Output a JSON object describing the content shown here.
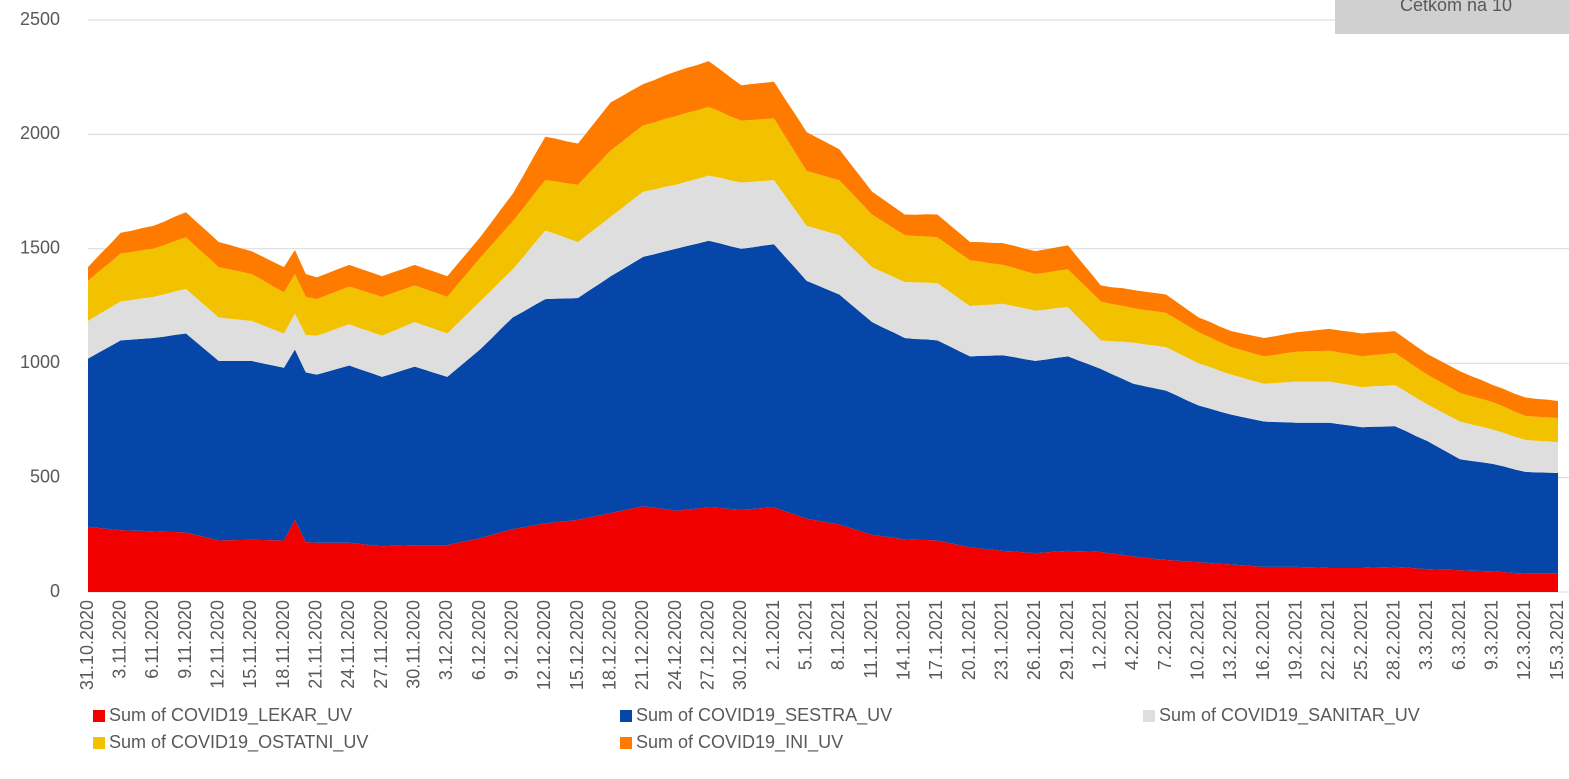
{
  "chart_data": {
    "type": "stacked_area",
    "note": "Četkom na 10",
    "categories": [
      "31.10.2020",
      null,
      null,
      "3.11.2020",
      null,
      null,
      "6.11.2020",
      null,
      null,
      "9.11.2020",
      null,
      null,
      "12.11.2020",
      null,
      null,
      "15.11.2020",
      null,
      null,
      "18.11.2020",
      null,
      null,
      "21.11.2020",
      null,
      null,
      "24.11.2020",
      null,
      null,
      "27.11.2020",
      null,
      null,
      "30.11.2020",
      null,
      null,
      "3.12.2020",
      null,
      null,
      "6.12.2020",
      null,
      null,
      "9.12.2020",
      null,
      null,
      "12.12.2020",
      null,
      null,
      "15.12.2020",
      null,
      null,
      "18.12.2020",
      null,
      null,
      "21.12.2020",
      null,
      null,
      "24.12.2020",
      null,
      null,
      "27.12.2020",
      null,
      null,
      "30.12.2020",
      null,
      null,
      "2.1.2021",
      null,
      null,
      "5.1.2021",
      null,
      null,
      "8.1.2021",
      null,
      null,
      "11.1.2021",
      null,
      null,
      "14.1.2021",
      null,
      null,
      "17.1.2021",
      null,
      null,
      "20.1.2021",
      null,
      null,
      "23.1.2021",
      null,
      null,
      "26.1.2021",
      null,
      null,
      "29.1.2021",
      null,
      null,
      "1.2.2021",
      null,
      null,
      "4.2.2021",
      null,
      null,
      "7.2.2021",
      null,
      null,
      "10.2.2021",
      null,
      null,
      "13.2.2021",
      null,
      null,
      "16.2.2021",
      null,
      null,
      "19.2.2021",
      null,
      null,
      "22.2.2021",
      null,
      null,
      "25.2.2021",
      null,
      null,
      "28.2.2021",
      null,
      null,
      "3.3.2021",
      null,
      null,
      "6.3.2021",
      null,
      null,
      "9.3.2021",
      null,
      null,
      "12.3.2021",
      null,
      null,
      "15.3.2021"
    ],
    "series": [
      {
        "name": "Sum of COVID19_LEKAR_UV",
        "color": "#f20000",
        "values": [
          285,
          280,
          275,
          270,
          268,
          267,
          265,
          263,
          262,
          260,
          248,
          237,
          225,
          226,
          227,
          228,
          227,
          226,
          225,
          315,
          218,
          215,
          215,
          215,
          215,
          210,
          205,
          200,
          202,
          203,
          205,
          205,
          205,
          205,
          215,
          225,
          235,
          248,
          262,
          275,
          283,
          292,
          300,
          305,
          310,
          315,
          325,
          335,
          345,
          355,
          365,
          375,
          368,
          362,
          355,
          360,
          365,
          370,
          367,
          363,
          360,
          363,
          367,
          370,
          353,
          337,
          320,
          312,
          303,
          295,
          280,
          265,
          250,
          243,
          237,
          230,
          228,
          227,
          225,
          215,
          205,
          195,
          190,
          185,
          180,
          177,
          173,
          170,
          173,
          177,
          180,
          178,
          177,
          175,
          168,
          162,
          155,
          150,
          145,
          140,
          137,
          133,
          130,
          127,
          123,
          120,
          117,
          113,
          110,
          110,
          110,
          110,
          108,
          107,
          105,
          105,
          105,
          105,
          107,
          108,
          110,
          107,
          103,
          100,
          98,
          97,
          95,
          93,
          92,
          90,
          87,
          83,
          80,
          80,
          80,
          80
        ]
      },
      {
        "name": "Sum of COVID19_SESTRA_UV",
        "color": "#0546a8",
        "values": [
          735,
          767,
          798,
          830,
          835,
          840,
          845,
          853,
          862,
          870,
          842,
          813,
          785,
          784,
          783,
          782,
          773,
          764,
          755,
          745,
          742,
          735,
          748,
          762,
          775,
          763,
          752,
          740,
          753,
          767,
          780,
          765,
          750,
          735,
          765,
          795,
          825,
          858,
          892,
          925,
          943,
          962,
          980,
          977,
          973,
          970,
          992,
          1013,
          1035,
          1053,
          1072,
          1090,
          1108,
          1127,
          1145,
          1152,
          1158,
          1165,
          1157,
          1148,
          1140,
          1143,
          1147,
          1150,
          1113,
          1077,
          1040,
          1028,
          1017,
          1005,
          980,
          955,
          930,
          913,
          897,
          880,
          878,
          877,
          875,
          862,
          848,
          835,
          842,
          848,
          855,
          850,
          845,
          840,
          843,
          847,
          850,
          833,
          817,
          800,
          785,
          770,
          755,
          750,
          745,
          740,
          722,
          703,
          685,
          675,
          665,
          655,
          648,
          642,
          635,
          633,
          632,
          630,
          632,
          633,
          635,
          628,
          622,
          615,
          615,
          615,
          615,
          597,
          578,
          560,
          535,
          510,
          485,
          480,
          475,
          470,
          462,
          453,
          445,
          443,
          442,
          440
        ]
      },
      {
        "name": "Sum of COVID19_SANITAR_UV",
        "color": "#dedede",
        "values": [
          165,
          167,
          168,
          170,
          173,
          177,
          180,
          185,
          190,
          195,
          193,
          192,
          190,
          185,
          180,
          175,
          167,
          158,
          150,
          157,
          163,
          170,
          173,
          177,
          180,
          180,
          180,
          180,
          185,
          190,
          195,
          193,
          192,
          190,
          197,
          203,
          210,
          210,
          210,
          210,
          240,
          270,
          300,
          282,
          263,
          245,
          250,
          255,
          260,
          268,
          277,
          285,
          283,
          282,
          280,
          282,
          283,
          285,
          287,
          288,
          290,
          287,
          283,
          280,
          267,
          253,
          240,
          247,
          253,
          260,
          253,
          247,
          240,
          242,
          243,
          245,
          247,
          248,
          250,
          240,
          230,
          220,
          222,
          223,
          225,
          223,
          222,
          220,
          218,
          217,
          215,
          185,
          155,
          125,
          143,
          162,
          180,
          183,
          187,
          190,
          188,
          187,
          185,
          182,
          178,
          175,
          172,
          168,
          165,
          170,
          175,
          180,
          180,
          180,
          180,
          178,
          177,
          175,
          177,
          178,
          180,
          173,
          167,
          160,
          162,
          163,
          165,
          160,
          155,
          150,
          147,
          143,
          140,
          138,
          137,
          135
        ]
      },
      {
        "name": "Sum of COVID19_OSTATNI_UV",
        "color": "#f2c200",
        "values": [
          175,
          187,
          198,
          210,
          210,
          210,
          210,
          215,
          220,
          225,
          223,
          222,
          220,
          215,
          210,
          205,
          197,
          188,
          180,
          173,
          167,
          160,
          162,
          163,
          165,
          167,
          168,
          170,
          167,
          163,
          160,
          160,
          160,
          160,
          170,
          180,
          190,
          197,
          203,
          210,
          213,
          217,
          220,
          230,
          240,
          250,
          263,
          277,
          290,
          290,
          290,
          290,
          293,
          297,
          300,
          300,
          300,
          300,
          290,
          280,
          270,
          270,
          270,
          270,
          260,
          250,
          240,
          240,
          240,
          240,
          237,
          233,
          230,
          222,
          213,
          205,
          203,
          202,
          200,
          200,
          200,
          200,
          190,
          180,
          170,
          167,
          163,
          160,
          162,
          163,
          165,
          167,
          168,
          170,
          163,
          157,
          150,
          150,
          150,
          150,
          145,
          140,
          135,
          130,
          125,
          120,
          120,
          120,
          120,
          123,
          127,
          130,
          132,
          133,
          135,
          135,
          135,
          135,
          137,
          138,
          140,
          137,
          133,
          130,
          128,
          127,
          125,
          123,
          122,
          120,
          115,
          110,
          105,
          105,
          105,
          105
        ]
      },
      {
        "name": "Sum of COVID19_INI_UV",
        "color": "#ff7b00",
        "values": [
          60,
          70,
          80,
          90,
          93,
          97,
          100,
          103,
          107,
          110,
          110,
          110,
          110,
          107,
          103,
          100,
          103,
          107,
          110,
          105,
          100,
          95,
          95,
          95,
          95,
          93,
          92,
          90,
          90,
          90,
          90,
          90,
          90,
          90,
          90,
          90,
          90,
          100,
          110,
          120,
          143,
          167,
          190,
          187,
          183,
          180,
          190,
          200,
          210,
          200,
          190,
          180,
          185,
          190,
          195,
          197,
          198,
          200,
          185,
          170,
          155,
          157,
          158,
          160,
          163,
          167,
          170,
          158,
          147,
          135,
          123,
          112,
          100,
          97,
          93,
          90,
          93,
          97,
          100,
          93,
          87,
          80,
          85,
          90,
          95,
          97,
          98,
          100,
          102,
          103,
          105,
          93,
          82,
          70,
          73,
          77,
          80,
          80,
          80,
          80,
          75,
          70,
          65,
          67,
          68,
          70,
          73,
          77,
          80,
          82,
          83,
          85,
          88,
          92,
          95,
          97,
          98,
          100,
          98,
          97,
          95,
          93,
          92,
          90,
          92,
          93,
          95,
          88,
          82,
          75,
          77,
          78,
          80,
          78,
          77,
          75
        ]
      }
    ],
    "ylim": [
      0,
      2500
    ],
    "yticks": [
      0,
      500,
      1000,
      1500,
      2000,
      2500
    ],
    "grid": true,
    "legend": "bottom"
  }
}
